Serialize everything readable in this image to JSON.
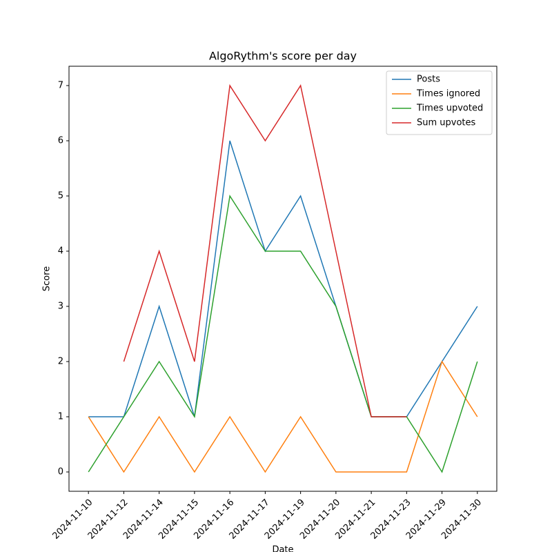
{
  "chart_data": {
    "type": "line",
    "title": "AlgoRythm's score per day",
    "x_label": "Date",
    "y_label": "Score",
    "categories": [
      "2024-11-10",
      "2024-11-12",
      "2024-11-14",
      "2024-11-15",
      "2024-11-16",
      "2024-11-17",
      "2024-11-19",
      "2024-11-20",
      "2024-11-21",
      "2024-11-23",
      "2024-11-29",
      "2024-11-30"
    ],
    "series": [
      {
        "name": "Posts",
        "color": "#1f77b4",
        "values": [
          1,
          1,
          3,
          1,
          6,
          4,
          5,
          3,
          1,
          1,
          2,
          3
        ]
      },
      {
        "name": "Times ignored",
        "color": "#ff7f0e",
        "values": [
          1,
          0,
          1,
          0,
          1,
          0,
          1,
          0,
          0,
          0,
          2,
          1
        ]
      },
      {
        "name": "Times upvoted",
        "color": "#2ca02c",
        "values": [
          0,
          1,
          2,
          1,
          5,
          4,
          4,
          3,
          1,
          1,
          0,
          2
        ]
      },
      {
        "name": "Sum upvotes",
        "color": "#d62728",
        "values": [
          null,
          2,
          4,
          2,
          7,
          6,
          7,
          4,
          1,
          1,
          null,
          null
        ]
      }
    ],
    "ylim": [
      -0.35,
      7.35
    ],
    "yticks": [
      0,
      1,
      2,
      3,
      4,
      5,
      6,
      7
    ],
    "grid": false,
    "legend": "upper right"
  }
}
